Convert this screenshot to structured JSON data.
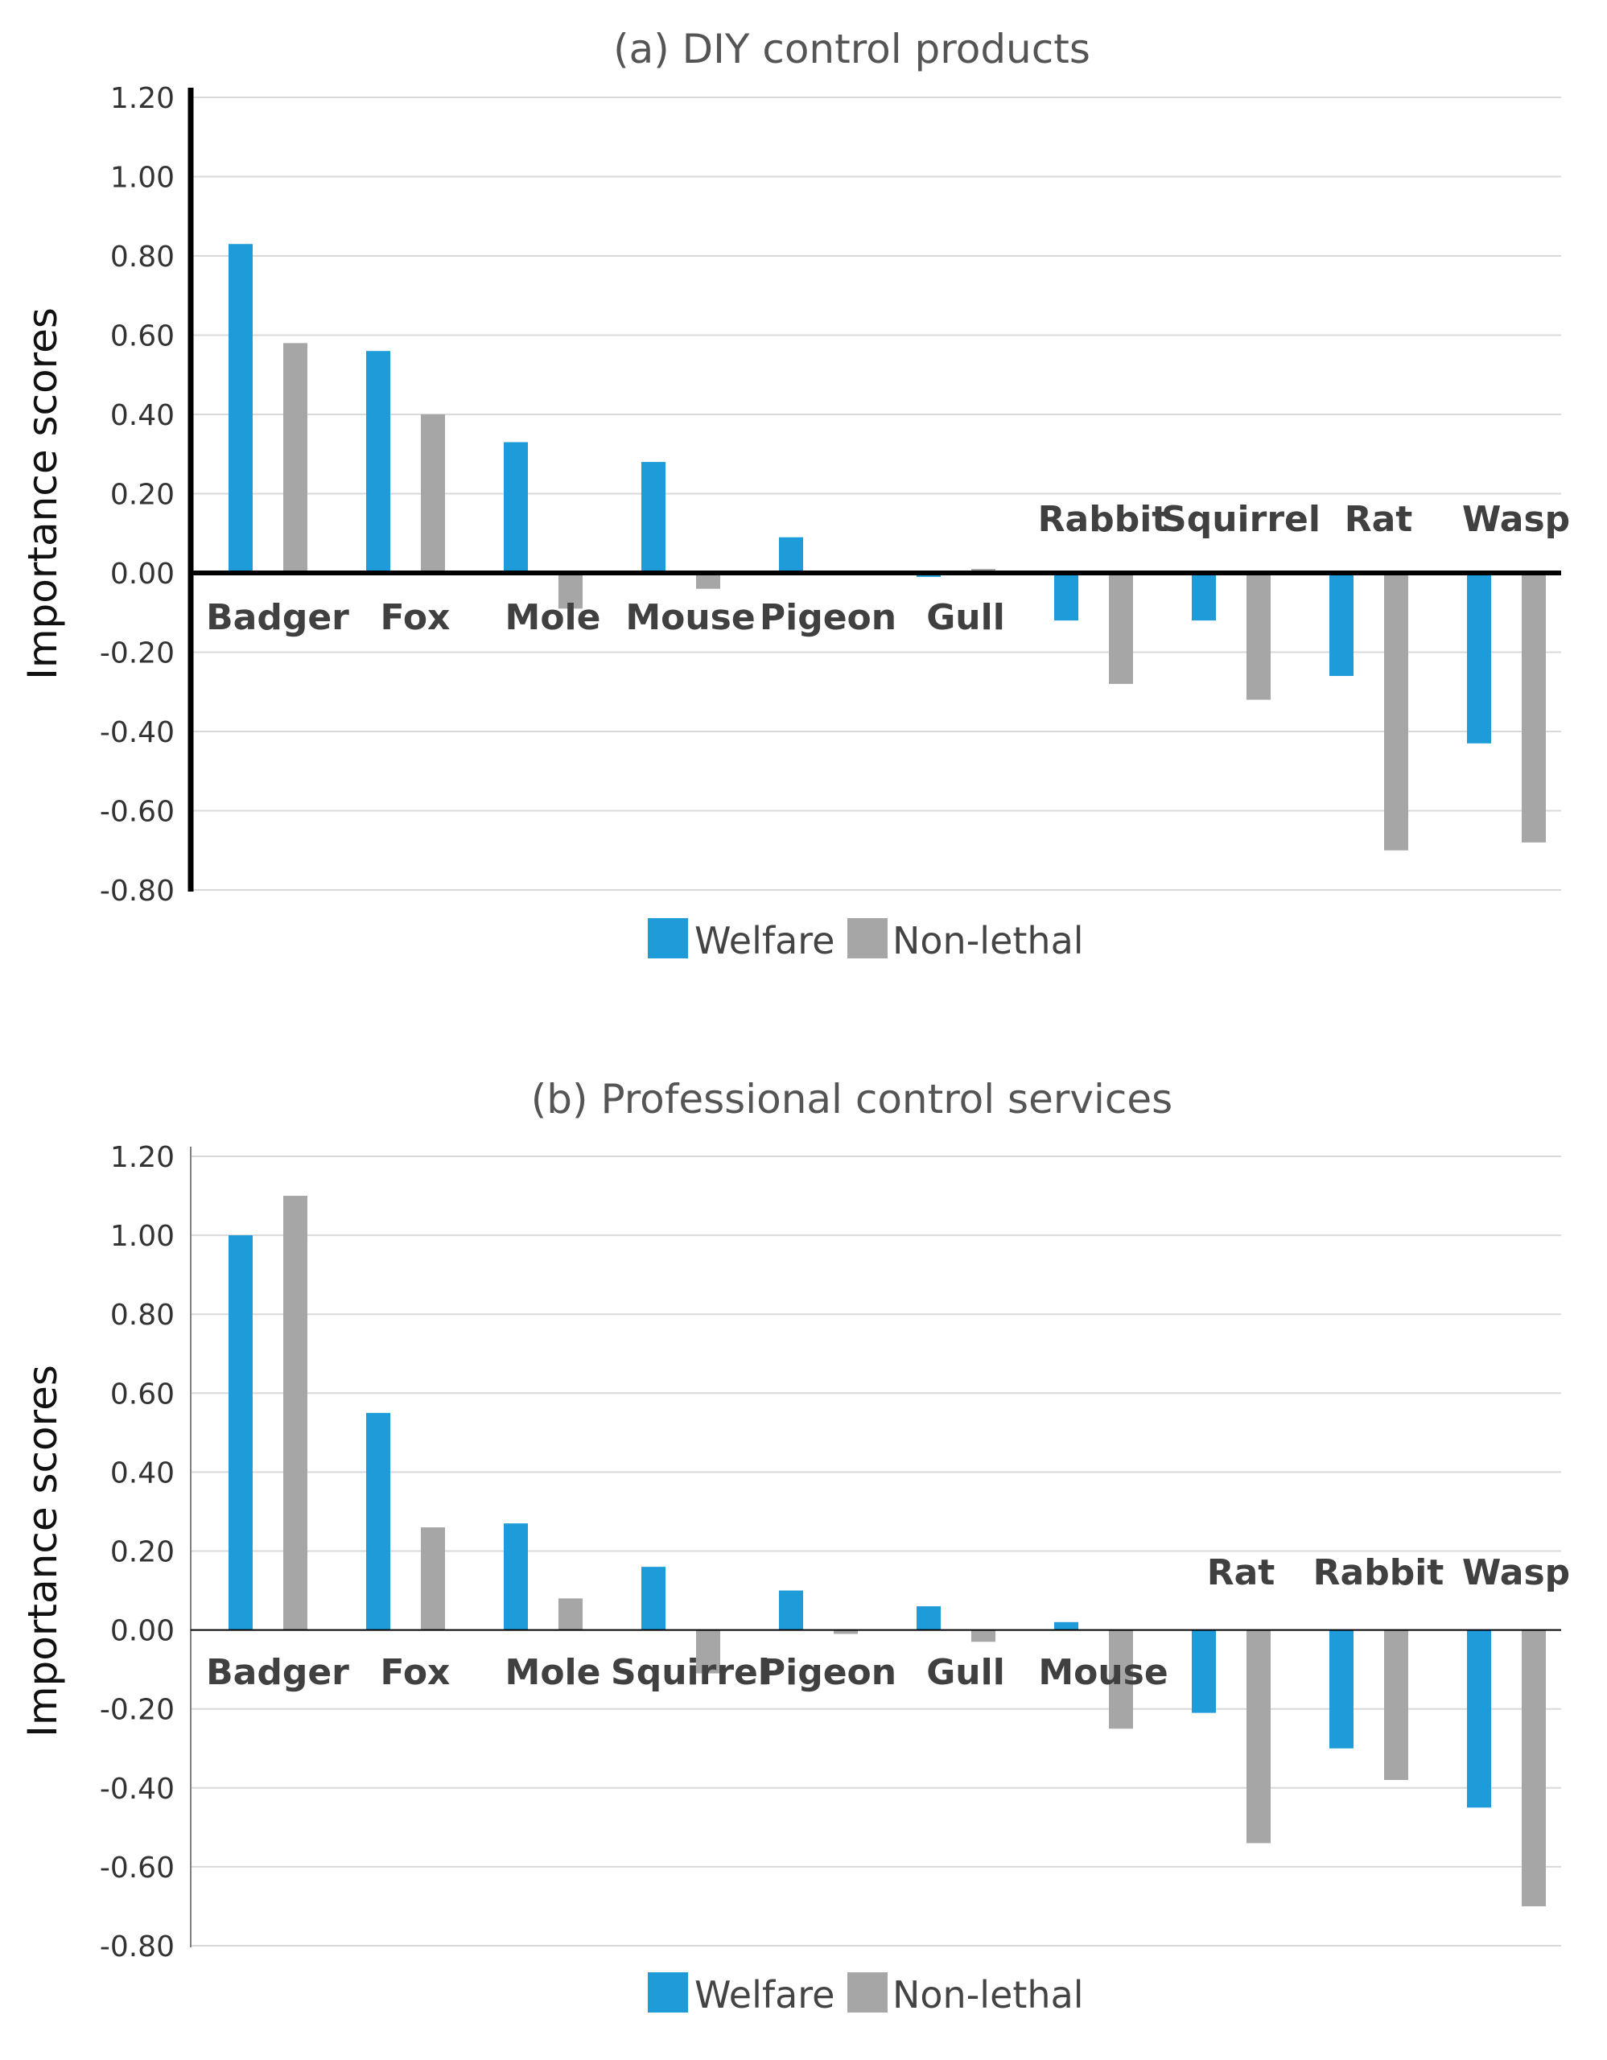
{
  "colors": {
    "welfare": "#1e9cd9",
    "non_lethal": "#a6a6a6",
    "axis": "#000000",
    "grid": "#d9d9d9"
  },
  "legend": {
    "welfare": "Welfare",
    "non_lethal": "Non-lethal"
  },
  "chart_data": [
    {
      "type": "bar",
      "title": "(a) DIY control products",
      "ylabel": "Importance scores",
      "ylim": [
        -0.8,
        1.2
      ],
      "yticks": [
        "1.20",
        "1.00",
        "0.80",
        "0.60",
        "0.40",
        "0.20",
        "0.00",
        "-0.20",
        "-0.40",
        "-0.60",
        "-0.80"
      ],
      "grid": true,
      "legend_position": "bottom-center",
      "categories": [
        "Badger",
        "Fox",
        "Mole",
        "Mouse",
        "Pigeon",
        "Gull",
        "Rabbit",
        "Squirrel",
        "Rat",
        "Wasp"
      ],
      "series": [
        {
          "name": "Welfare",
          "values": [
            0.83,
            0.56,
            0.33,
            0.28,
            0.09,
            -0.01,
            -0.12,
            -0.12,
            -0.26,
            -0.43
          ]
        },
        {
          "name": "Non-lethal",
          "values": [
            0.58,
            0.4,
            -0.09,
            -0.04,
            0.0,
            0.01,
            -0.28,
            -0.32,
            -0.7,
            -0.68
          ]
        }
      ]
    },
    {
      "type": "bar",
      "title": "(b) Professional  control services",
      "ylabel": "Importance scores",
      "ylim": [
        -0.8,
        1.2
      ],
      "yticks": [
        "1.20",
        "1.00",
        "0.80",
        "0.60",
        "0.40",
        "0.20",
        "0.00",
        "-0.20",
        "-0.40",
        "-0.60",
        "-0.80"
      ],
      "grid": true,
      "legend_position": "bottom-center",
      "categories": [
        "Badger",
        "Fox",
        "Mole",
        "Squirrel",
        "Pigeon",
        "Gull",
        "Mouse",
        "Rat",
        "Rabbit",
        "Wasp"
      ],
      "series": [
        {
          "name": "Welfare",
          "values": [
            1.0,
            0.55,
            0.27,
            0.16,
            0.1,
            0.06,
            0.02,
            -0.21,
            -0.3,
            -0.45
          ]
        },
        {
          "name": "Non-lethal",
          "values": [
            1.1,
            0.26,
            0.08,
            -0.11,
            -0.01,
            -0.03,
            -0.25,
            -0.54,
            -0.38,
            -0.7
          ]
        }
      ]
    }
  ]
}
